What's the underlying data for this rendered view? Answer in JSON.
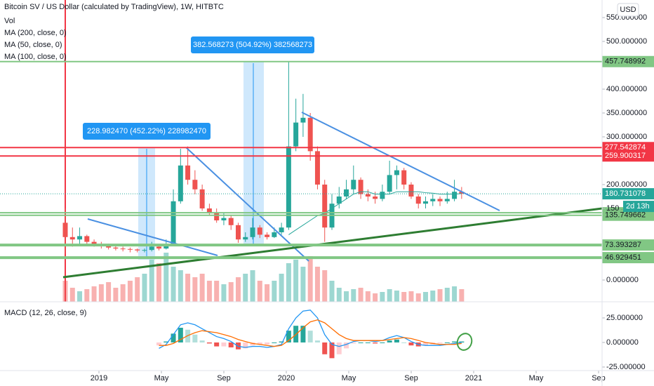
{
  "chart_data": {
    "type": "candlestick",
    "title": "Bitcoin SV / US Dollar (calculated by TradingView), 1W, HITBTC",
    "legend_items": [
      "Vol",
      "MA (200, close, 0)",
      "MA (50, close, 0)",
      "MA (100, close, 0)"
    ],
    "currency": "USD",
    "up_color": "#26a69a",
    "down_color": "#ef5350",
    "open": [
      120,
      90,
      85,
      92,
      80,
      75,
      72,
      68,
      66,
      65,
      64,
      62,
      63,
      70,
      66,
      75,
      165,
      240,
      210,
      190,
      150,
      140,
      125,
      130,
      115,
      85,
      90,
      110,
      95,
      90,
      100,
      110,
      280,
      330,
      340,
      270,
      200,
      110,
      160,
      175,
      190,
      210,
      180,
      175,
      170,
      185,
      220,
      230,
      200,
      175,
      160,
      165,
      170,
      165,
      170,
      185
    ],
    "high": [
      150,
      110,
      110,
      95,
      85,
      80,
      76,
      72,
      70,
      68,
      66,
      66,
      80,
      75,
      85,
      190,
      275,
      280,
      230,
      200,
      160,
      150,
      140,
      135,
      120,
      100,
      130,
      115,
      100,
      110,
      120,
      457.75,
      380,
      390,
      350,
      280,
      210,
      180,
      195,
      210,
      240,
      215,
      190,
      185,
      200,
      250,
      240,
      235,
      205,
      180,
      175,
      180,
      175,
      185,
      210,
      195
    ],
    "low": [
      55,
      70,
      75,
      72,
      70,
      66,
      64,
      62,
      60,
      58,
      58,
      58,
      60,
      62,
      64,
      72,
      160,
      200,
      180,
      145,
      135,
      120,
      115,
      105,
      78,
      80,
      85,
      88,
      85,
      88,
      95,
      105,
      270,
      300,
      250,
      190,
      80,
      105,
      150,
      170,
      180,
      170,
      165,
      160,
      165,
      180,
      190,
      190,
      170,
      150,
      150,
      155,
      155,
      160,
      165,
      170
    ],
    "close": [
      90,
      85,
      92,
      80,
      75,
      72,
      68,
      66,
      65,
      64,
      62,
      63,
      70,
      66,
      75,
      165,
      240,
      210,
      190,
      150,
      140,
      125,
      130,
      115,
      85,
      90,
      110,
      95,
      90,
      100,
      110,
      280,
      330,
      340,
      270,
      200,
      110,
      160,
      175,
      190,
      210,
      180,
      175,
      170,
      185,
      220,
      230,
      200,
      175,
      160,
      165,
      170,
      165,
      170,
      185,
      180.73
    ],
    "volume": [
      30,
      20,
      15,
      18,
      22,
      25,
      28,
      20,
      25,
      30,
      35,
      40,
      60,
      55,
      70,
      50,
      45,
      40,
      35,
      40,
      30,
      30,
      25,
      28,
      35,
      40,
      45,
      30,
      25,
      30,
      40,
      55,
      60,
      50,
      65,
      50,
      45,
      30,
      20,
      15,
      18,
      20,
      15,
      12,
      14,
      18,
      16,
      14,
      15,
      12,
      14,
      16,
      18,
      20,
      22,
      18
    ],
    "ma50": {
      "color": "#26a69a",
      "values": [
        null,
        null,
        null,
        null,
        null,
        null,
        null,
        null,
        null,
        null,
        null,
        null,
        null,
        null,
        null,
        null,
        null,
        null,
        null,
        null,
        null,
        null,
        null,
        null,
        null,
        null,
        null,
        null,
        null,
        null,
        null,
        95,
        105,
        115,
        125,
        135,
        140,
        150,
        160,
        170,
        180,
        185,
        185,
        180,
        180,
        180,
        185,
        185,
        185,
        185,
        183,
        182,
        180,
        180,
        180,
        181
      ]
    },
    "ylim": [
      -45.6,
      586.8
    ],
    "yticks": [
      {
        "value": 550,
        "label": "550.000000"
      },
      {
        "value": 500,
        "label": "500.000000"
      },
      {
        "value": 400,
        "label": "400.000000"
      },
      {
        "value": 350,
        "label": "350.000000"
      },
      {
        "value": 300,
        "label": "300.000000"
      },
      {
        "value": 200,
        "label": "200.000000"
      },
      150,
      {
        "value": 0,
        "label": "0.000000"
      }
    ],
    "levels": [
      {
        "value": 457.748992,
        "color": "#81c784"
      },
      {
        "value": 277.542874,
        "color": "#f23645"
      },
      {
        "value": 259.900317,
        "color": "#f23645"
      },
      {
        "value": 140.994681,
        "color": "#81c784"
      },
      {
        "value": 135.749662,
        "color": "#81c784"
      },
      {
        "value": 73.393287,
        "color": "#81c784"
      },
      {
        "value": 46.929451,
        "color": "#81c784"
      }
    ],
    "last_price": 180.731078,
    "countdown": "2d 13h",
    "annotations": [
      "228.982470 (452.22%) 228982470",
      "382.568273 (504.92%) 382568273"
    ],
    "xticks": [
      {
        "value": "2019-01",
        "label": "2019"
      },
      {
        "value": "2019-05",
        "label": "May"
      },
      {
        "value": "2019-09",
        "label": "Sep"
      },
      {
        "value": "2020-01",
        "label": "2020"
      },
      {
        "value": "2020-05",
        "label": "May"
      },
      {
        "value": "2020-09",
        "label": "Sep"
      },
      {
        "value": "2021-01",
        "label": "2021"
      },
      {
        "value": "2021-05",
        "label": "May"
      },
      {
        "value": "2021-09",
        "label": "Sep"
      }
    ],
    "macd": {
      "title": "MACD (12, 26, close, 9)",
      "ylim": [
        -28.6,
        40
      ],
      "yticks": [
        {
          "value": 25,
          "label": "25.000000"
        },
        {
          "value": 0,
          "label": "0.000000"
        },
        {
          "value": -25,
          "label": "-25.000000"
        }
      ],
      "macd_color": "#2196f3",
      "signal_color": "#ff6d00",
      "hist_colors": [
        "#26a69a",
        "#b2dfdb",
        "#ffcdd2",
        "#ef5350"
      ],
      "macd": [
        null,
        null,
        null,
        null,
        null,
        null,
        null,
        null,
        null,
        null,
        null,
        null,
        null,
        -6,
        -2,
        8,
        18,
        20,
        18,
        14,
        10,
        6,
        4,
        1,
        -4,
        -5,
        -4,
        -4,
        -5,
        -4,
        -2,
        14,
        25,
        32,
        33,
        25,
        8,
        -2,
        -4,
        -2,
        1,
        2,
        2,
        1,
        2,
        5,
        7,
        5,
        1,
        -2,
        -3,
        -3,
        -3,
        -2,
        -1,
        0
      ],
      "signal": [
        null,
        null,
        null,
        null,
        null,
        null,
        null,
        null,
        null,
        null,
        null,
        null,
        null,
        -3,
        -3,
        -1,
        3,
        7,
        10,
        12,
        11,
        10,
        8,
        6,
        3,
        1,
        -1,
        -2,
        -3,
        -4,
        -3,
        2,
        8,
        15,
        21,
        23,
        20,
        14,
        8,
        4,
        2,
        2,
        2,
        2,
        2,
        3,
        4,
        5,
        4,
        2,
        0,
        -1,
        -2,
        -2,
        -2,
        -1
      ],
      "histogram": [
        null,
        null,
        null,
        null,
        null,
        null,
        null,
        null,
        null,
        null,
        null,
        null,
        null,
        -3,
        1,
        9,
        15,
        13,
        8,
        2,
        -1,
        -4,
        -4,
        -5,
        -7,
        -6,
        -3,
        -2,
        -2,
        0,
        1,
        12,
        17,
        17,
        12,
        2,
        -12,
        -16,
        -12,
        -6,
        -1,
        0,
        0,
        -1,
        0,
        2,
        3,
        0,
        -3,
        -4,
        -3,
        -2,
        -1,
        0,
        1,
        1
      ]
    }
  }
}
